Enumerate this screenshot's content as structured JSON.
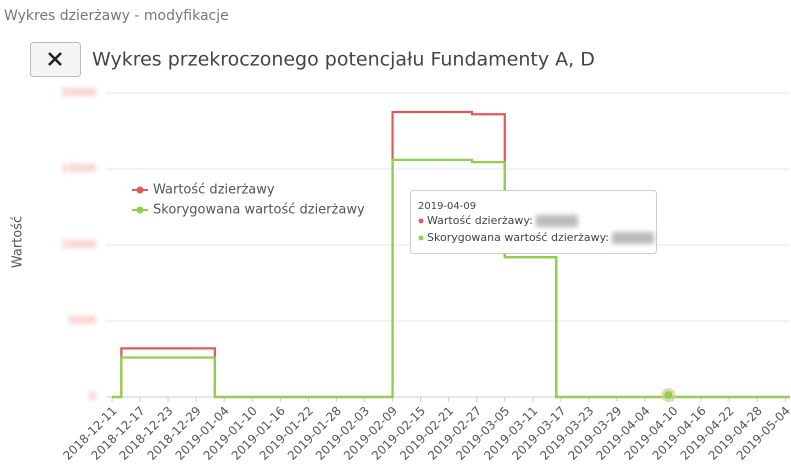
{
  "page": {
    "heading": "Wykres dzierżawy - modyfikacje"
  },
  "chart_data": {
    "type": "line",
    "title": "Wykres przekroczonego potencjału Fundamenty A, D",
    "y_label": "Wartość",
    "x": [
      "2018-12-11",
      "2018-12-13",
      "2019-01-02",
      "2019-02-09",
      "2019-02-26",
      "2019-03-05",
      "2019-03-16",
      "2019-05-05"
    ],
    "series": [
      {
        "name": "Wartość dzierżawy",
        "color": "#e05a5a",
        "values": [
          0,
          3200,
          0,
          18750,
          18600,
          9200,
          0,
          0
        ]
      },
      {
        "name": "Skorygowana wartość dzierżawy",
        "color": "#8fd14f",
        "values": [
          0,
          2600,
          0,
          15600,
          15450,
          9200,
          0,
          0
        ]
      }
    ],
    "step": true,
    "xlim": [
      "2018-12-11",
      "2019-05-05"
    ],
    "xticks": [
      "2018-12-11",
      "2018-12-17",
      "2018-12-23",
      "2018-12-29",
      "2019-01-04",
      "2019-01-10",
      "2019-01-16",
      "2019-01-22",
      "2019-01-28",
      "2019-02-03",
      "2019-02-09",
      "2019-02-15",
      "2019-02-21",
      "2019-02-27",
      "2019-03-05",
      "2019-03-11",
      "2019-03-17",
      "2019-03-23",
      "2019-03-29",
      "2019-04-04",
      "2019-04-10",
      "2019-04-16",
      "2019-04-22",
      "2019-04-28",
      "2019-05-04"
    ],
    "ylim": [
      0,
      20000
    ],
    "yticks": [
      0,
      5000,
      10000,
      15000,
      20000
    ],
    "grid": true
  },
  "tooltip": {
    "date": "2019-04-09",
    "rows": [
      "Wartość dzierżawy:",
      "Skorygowana wartość dzierżawy:"
    ]
  }
}
